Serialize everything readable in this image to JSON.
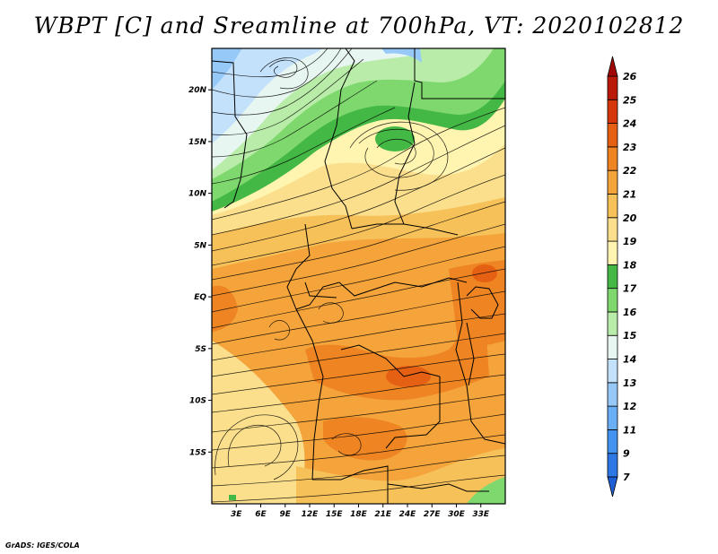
{
  "title": "WBPT [C] and Sreamline at 700hPa, VT: 2020102812",
  "footer": "GrADS: IGES/COLA",
  "map": {
    "lon_range": [
      0,
      36
    ],
    "lat_range": [
      -20,
      24
    ],
    "lat_ticks": [
      {
        "value": 20,
        "label": "20N"
      },
      {
        "value": 15,
        "label": "15N"
      },
      {
        "value": 10,
        "label": "10N"
      },
      {
        "value": 5,
        "label": "5N"
      },
      {
        "value": 0,
        "label": "EQ"
      },
      {
        "value": -5,
        "label": "5S"
      },
      {
        "value": -10,
        "label": "10S"
      },
      {
        "value": -15,
        "label": "15S"
      }
    ],
    "lon_ticks": [
      {
        "value": 3,
        "label": "3E"
      },
      {
        "value": 6,
        "label": "6E"
      },
      {
        "value": 9,
        "label": "9E"
      },
      {
        "value": 12,
        "label": "12E"
      },
      {
        "value": 15,
        "label": "15E"
      },
      {
        "value": 18,
        "label": "18E"
      },
      {
        "value": 21,
        "label": "21E"
      },
      {
        "value": 24,
        "label": "24E"
      },
      {
        "value": 27,
        "label": "27E"
      },
      {
        "value": 30,
        "label": "30E"
      },
      {
        "value": 33,
        "label": "33E"
      }
    ]
  },
  "colorbar": {
    "levels": [
      "7",
      "9",
      "11",
      "12",
      "13",
      "14",
      "15",
      "16",
      "17",
      "18",
      "19",
      "20",
      "21",
      "22",
      "23",
      "24",
      "25",
      "26"
    ],
    "colors": [
      "#1f5fd6",
      "#2e78e6",
      "#4493f0",
      "#6aaef5",
      "#96c8f8",
      "#c4e1fb",
      "#e8f6f2",
      "#b8eca8",
      "#7ed86e",
      "#44b844",
      "#fff4b0",
      "#fbdf8c",
      "#f7c15a",
      "#f4a43a",
      "#ee8422",
      "#e66014",
      "#d6380c",
      "#bb1a0a",
      "#a00808"
    ]
  }
}
